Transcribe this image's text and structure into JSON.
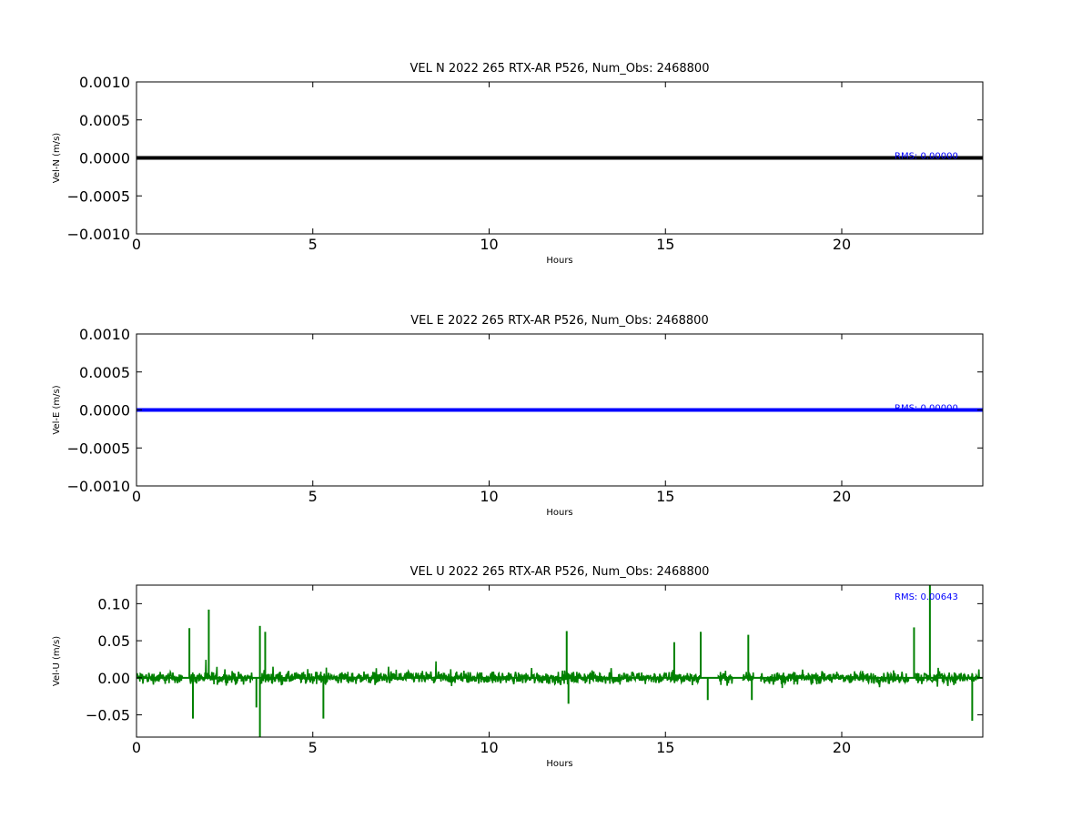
{
  "chart_data": [
    {
      "type": "line",
      "title": "VEL N 2022 265 RTX-AR  P526, Num_Obs: 2468800",
      "xlabel": "Hours",
      "ylabel": "Vel-N (m/s)",
      "xlim": [
        0,
        24
      ],
      "ylim": [
        -0.001,
        0.001
      ],
      "xticks": [
        0,
        5,
        10,
        15,
        20
      ],
      "xtick_labels": [
        "0",
        "5",
        "10",
        "15",
        "20"
      ],
      "yticks": [
        0.001,
        0.0005,
        0.0,
        -0.0005,
        -0.001
      ],
      "ytick_labels": [
        "0.0010",
        "0.0005",
        "0.0000",
        "−0.0005",
        "−0.0010"
      ],
      "annotation": "RMS:  0.00000",
      "grid": false,
      "color": "#000000",
      "series": [
        {
          "x": [
            0,
            24
          ],
          "y": [
            0.0,
            0.0
          ]
        }
      ]
    },
    {
      "type": "line",
      "title": "VEL E 2022 265 RTX-AR  P526, Num_Obs: 2468800",
      "xlabel": "Hours",
      "ylabel": "Vel-E (m/s)",
      "xlim": [
        0,
        24
      ],
      "ylim": [
        -0.001,
        0.001
      ],
      "xticks": [
        0,
        5,
        10,
        15,
        20
      ],
      "xtick_labels": [
        "0",
        "5",
        "10",
        "15",
        "20"
      ],
      "yticks": [
        0.001,
        0.0005,
        0.0,
        -0.0005,
        -0.001
      ],
      "ytick_labels": [
        "0.0010",
        "0.0005",
        "0.0000",
        "−0.0005",
        "−0.0010"
      ],
      "annotation": "RMS:  0.00000",
      "grid": false,
      "color": "#0000ff",
      "series": [
        {
          "x": [
            0,
            24
          ],
          "y": [
            0.0,
            0.0
          ]
        }
      ]
    },
    {
      "type": "line",
      "title": "VEL U 2022 265 RTX-AR  P526, Num_Obs: 2468800",
      "xlabel": "Hours",
      "ylabel": "Vel-U (m/s)",
      "xlim": [
        0,
        24
      ],
      "ylim": [
        -0.08,
        0.125
      ],
      "xticks": [
        0,
        5,
        10,
        15,
        20
      ],
      "xtick_labels": [
        "0",
        "5",
        "10",
        "15",
        "20"
      ],
      "yticks": [
        0.1,
        0.05,
        0.0,
        -0.05
      ],
      "ytick_labels": [
        "0.10",
        "0.05",
        "0.00",
        "−0.05"
      ],
      "annotation": "RMS:  0.00643",
      "grid": false,
      "color": "#008000",
      "noise_amplitude": 0.012,
      "dense_segments": [
        [
          0.0,
          1.3
        ],
        [
          1.5,
          3.3
        ],
        [
          3.5,
          16.0
        ],
        [
          16.5,
          16.9
        ],
        [
          17.2,
          17.5
        ],
        [
          17.7,
          21.9
        ],
        [
          22.1,
          23.9
        ]
      ],
      "spikes": [
        [
          1.5,
          0.067
        ],
        [
          1.6,
          -0.055
        ],
        [
          2.05,
          0.092
        ],
        [
          3.4,
          -0.04
        ],
        [
          3.5,
          0.07
        ],
        [
          3.5,
          -0.08
        ],
        [
          3.65,
          0.062
        ],
        [
          5.3,
          -0.055
        ],
        [
          12.2,
          0.063
        ],
        [
          12.25,
          -0.035
        ],
        [
          15.25,
          0.048
        ],
        [
          16.0,
          0.062
        ],
        [
          16.2,
          -0.03
        ],
        [
          17.35,
          0.058
        ],
        [
          17.45,
          -0.03
        ],
        [
          22.05,
          0.068
        ],
        [
          22.5,
          0.125
        ],
        [
          23.7,
          -0.058
        ]
      ]
    }
  ]
}
